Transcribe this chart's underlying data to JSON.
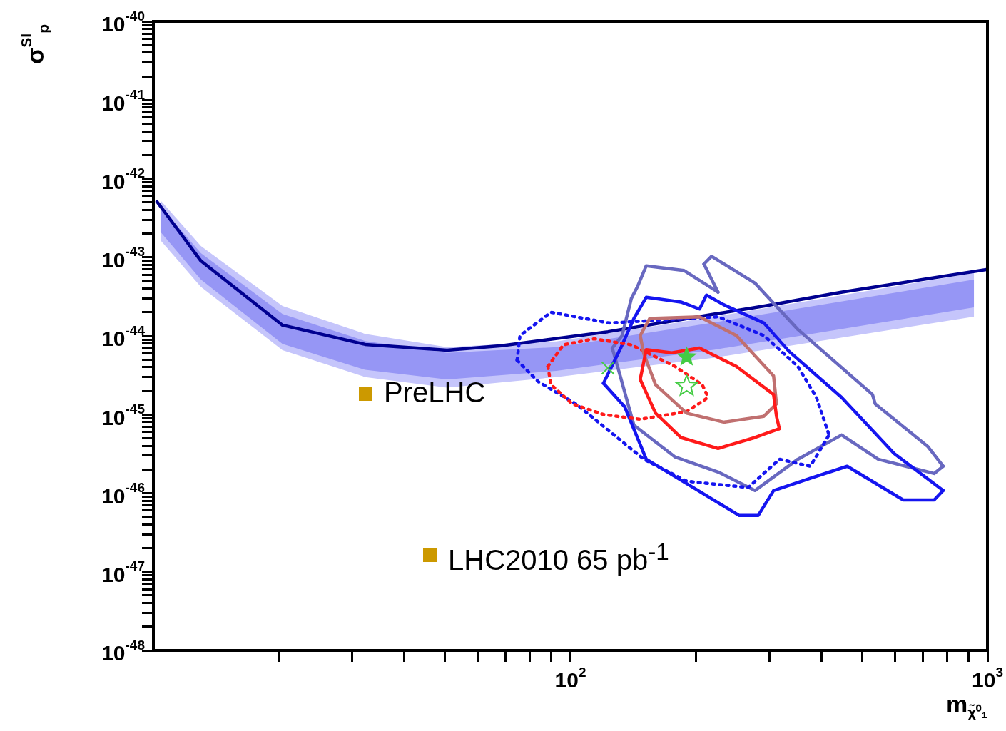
{
  "chart_data": {
    "type": "line",
    "xlabel": "m$_{χ̃⁰₁}$",
    "ylabel": "σ$^{SI}$$_{p}$",
    "log": "xy",
    "grid": false,
    "legend": false,
    "xlim": [
      10,
      1000
    ],
    "ylim": [
      1e-48,
      1e-40
    ],
    "xticks": [
      {
        "value": 20,
        "label": null
      },
      {
        "value": 30,
        "label": null
      },
      {
        "value": 40,
        "label": null
      },
      {
        "value": 50,
        "label": null
      },
      {
        "value": 60,
        "label": null
      },
      {
        "value": 70,
        "label": null
      },
      {
        "value": 80,
        "label": null
      },
      {
        "value": 90,
        "label": null
      },
      {
        "value": 100,
        "label": "10$^{2}$"
      },
      {
        "value": 200,
        "label": null
      },
      {
        "value": 300,
        "label": null
      },
      {
        "value": 400,
        "label": null
      },
      {
        "value": 500,
        "label": null
      },
      {
        "value": 600,
        "label": null
      },
      {
        "value": 700,
        "label": null
      },
      {
        "value": 800,
        "label": null
      },
      {
        "value": 900,
        "label": null
      },
      {
        "value": 1000,
        "label": "10$^{3}$"
      }
    ],
    "yticks": [
      {
        "value": 1e-48,
        "label": "10$^{-48}$"
      },
      {
        "value": 2e-48,
        "label": null
      },
      {
        "value": 3e-48,
        "label": null
      },
      {
        "value": 4e-48,
        "label": null
      },
      {
        "value": 5e-48,
        "label": null
      },
      {
        "value": 6e-48,
        "label": null
      },
      {
        "value": 7e-48,
        "label": null
      },
      {
        "value": 8e-48,
        "label": null
      },
      {
        "value": 9e-48,
        "label": null
      },
      {
        "value": 1e-47,
        "label": "10$^{-47}$"
      },
      {
        "value": 2e-47,
        "label": null
      },
      {
        "value": 3e-47,
        "label": null
      },
      {
        "value": 4e-47,
        "label": null
      },
      {
        "value": 5e-47,
        "label": null
      },
      {
        "value": 6e-47,
        "label": null
      },
      {
        "value": 7e-47,
        "label": null
      },
      {
        "value": 8e-47,
        "label": null
      },
      {
        "value": 9e-47,
        "label": null
      },
      {
        "value": 1e-46,
        "label": "10$^{-46}$"
      },
      {
        "value": 2e-46,
        "label": null
      },
      {
        "value": 3e-46,
        "label": null
      },
      {
        "value": 4e-46,
        "label": null
      },
      {
        "value": 5e-46,
        "label": null
      },
      {
        "value": 6e-46,
        "label": null
      },
      {
        "value": 7e-46,
        "label": null
      },
      {
        "value": 8e-46,
        "label": null
      },
      {
        "value": 9e-46,
        "label": null
      },
      {
        "value": 1e-45,
        "label": "10$^{-45}$"
      },
      {
        "value": 2e-45,
        "label": null
      },
      {
        "value": 3e-45,
        "label": null
      },
      {
        "value": 4e-45,
        "label": null
      },
      {
        "value": 5e-45,
        "label": null
      },
      {
        "value": 6e-45,
        "label": null
      },
      {
        "value": 7e-45,
        "label": null
      },
      {
        "value": 8e-45,
        "label": null
      },
      {
        "value": 9e-45,
        "label": null
      },
      {
        "value": 1e-44,
        "label": "10$^{-44}$"
      },
      {
        "value": 2e-44,
        "label": null
      },
      {
        "value": 3e-44,
        "label": null
      },
      {
        "value": 4e-44,
        "label": null
      },
      {
        "value": 5e-44,
        "label": null
      },
      {
        "value": 6e-44,
        "label": null
      },
      {
        "value": 7e-44,
        "label": null
      },
      {
        "value": 8e-44,
        "label": null
      },
      {
        "value": 9e-44,
        "label": null
      },
      {
        "value": 1e-43,
        "label": "10$^{-43}$"
      },
      {
        "value": 2e-43,
        "label": null
      },
      {
        "value": 3e-43,
        "label": null
      },
      {
        "value": 4e-43,
        "label": null
      },
      {
        "value": 5e-43,
        "label": null
      },
      {
        "value": 6e-43,
        "label": null
      },
      {
        "value": 7e-43,
        "label": null
      },
      {
        "value": 8e-43,
        "label": null
      },
      {
        "value": 9e-43,
        "label": null
      },
      {
        "value": 1e-42,
        "label": "10$^{-42}$"
      },
      {
        "value": 2e-42,
        "label": null
      },
      {
        "value": 3e-42,
        "label": null
      },
      {
        "value": 4e-42,
        "label": null
      },
      {
        "value": 5e-42,
        "label": null
      },
      {
        "value": 6e-42,
        "label": null
      },
      {
        "value": 7e-42,
        "label": null
      },
      {
        "value": 8e-42,
        "label": null
      },
      {
        "value": 9e-42,
        "label": null
      },
      {
        "value": 1e-41,
        "label": "10$^{-41}$"
      },
      {
        "value": 2e-41,
        "label": null
      },
      {
        "value": 3e-41,
        "label": null
      },
      {
        "value": 4e-41,
        "label": null
      },
      {
        "value": 5e-41,
        "label": null
      },
      {
        "value": 6e-41,
        "label": null
      },
      {
        "value": 7e-41,
        "label": null
      },
      {
        "value": 8e-41,
        "label": null
      },
      {
        "value": 9e-41,
        "label": null
      },
      {
        "value": 1e-40,
        "label": "10$^{-40}$"
      }
    ],
    "series": [
      {
        "type": "line",
        "color": "#c5c5fb",
        "x": [
          10.4,
          13.0,
          20.4,
          32.2,
          50.6,
          92.5,
          222,
          928
        ],
        "values": [
          null,
          null,
          null,
          null,
          null,
          null,
          null,
          null
        ],
        "upper": [
          5.3e-43,
          1.39e-43,
          2.4e-44,
          1.06e-44,
          7.2e-45,
          8.5e-45,
          1.76e-44,
          6.3e-44
        ],
        "lower": [
          1.64e-43,
          4.2e-44,
          6.6e-45,
          3e-45,
          2.2e-45,
          3e-45,
          5.3e-45,
          1.76e-44
        ]
      },
      {
        "type": "line",
        "color": "#9696f5",
        "x": [
          10.4,
          13.0,
          20.4,
          32.2,
          50.6,
          92.5,
          222,
          928
        ],
        "values": [
          null,
          null,
          null,
          null,
          null,
          null,
          null,
          null
        ],
        "upper": [
          4.4e-43,
          1.13e-43,
          1.9e-44,
          8.6e-45,
          6.1e-45,
          7.2e-45,
          1.49e-44,
          5.2e-44
        ],
        "lower": [
          2.1e-43,
          5.2e-44,
          7.9e-45,
          3.7e-45,
          2.8e-45,
          3.6e-45,
          6.7e-45,
          2.3e-44
        ]
      },
      {
        "type": "line",
        "color": "#000090",
        "x": [
          10.2,
          13.0,
          20.4,
          32.2,
          50.6,
          68.4,
          123,
          222,
          292,
          446,
          1000
        ],
        "values": [
          5.1e-43,
          9e-44,
          1.37e-44,
          7.8e-45,
          6.6e-45,
          7.5e-45,
          1.13e-44,
          1.9e-44,
          2.4e-44,
          3.6e-44,
          7e-44
        ]
      },
      {
        "type": "line",
        "color": "#6868c0",
        "x": [
          126,
          133,
          140,
          145,
          152,
          187,
          226
        ],
        "values": [
          7e-45,
          1.01e-44,
          3e-44,
          4.3e-44,
          7.8e-44,
          6.8e-44,
          3.6e-44
        ]
      },
      {
        "type": "line",
        "color": "#6868c0",
        "x": [
          209,
          226
        ],
        "values": [
          8.2e-44,
          3.6e-44
        ]
      },
      {
        "type": "line",
        "color": "#6868c0",
        "x": [
          209,
          218,
          277,
          351,
          530,
          538,
          720,
          783
        ],
        "values": [
          8.2e-44,
          1.03e-43,
          4.7e-44,
          1.21e-44,
          1.8e-45,
          1.37e-45,
          3.9e-46,
          2.2e-46
        ]
      },
      {
        "type": "line",
        "color": "#6868c0",
        "x": [
          126,
          131,
          142,
          178,
          226,
          277,
          351,
          447,
          547,
          745,
          783
        ],
        "values": [
          7e-45,
          3.4e-45,
          7.3e-46,
          2.9e-46,
          1.86e-46,
          1.08e-46,
          2.7e-46,
          5.5e-46,
          2.7e-46,
          1.78e-46,
          2.2e-46
        ]
      },
      {
        "type": "line",
        "color": "#1515f0",
        "x": [
          120,
          132,
          142,
          152,
          184,
          204,
          212,
          233,
          291,
          334,
          447,
          597,
          783
        ],
        "values": [
          2.5e-45,
          7e-45,
          1.67e-44,
          3.1e-44,
          2.7e-44,
          2.2e-44,
          3.3e-44,
          2.5e-44,
          1.46e-44,
          6.4e-45,
          1.65e-45,
          3.2e-46,
          1.08e-46
        ]
      },
      {
        "type": "line",
        "color": "#1515f0",
        "x": [
          120,
          135,
          152,
          197,
          254,
          282,
          307,
          376,
          461,
          628,
          745,
          783
        ],
        "values": [
          2.5e-45,
          1.25e-45,
          2.7e-46,
          1.18e-46,
          5.2e-47,
          5.2e-47,
          1.08e-46,
          1.55e-46,
          2.2e-46,
          8.2e-47,
          8.2e-47,
          1.08e-46
        ]
      },
      {
        "type": "line",
        "color": "#1515f0",
        "line_style": "dotted",
        "x": [
          74.5,
          75.7,
          89.8,
          124,
          226,
          291,
          351,
          389,
          417
        ],
        "values": [
          4.9e-45,
          1.01e-44,
          2e-44,
          1.46e-44,
          1.75e-44,
          1.01e-44,
          4.1e-45,
          1.65e-45,
          5.5e-46
        ]
      },
      {
        "type": "line",
        "color": "#1515f0",
        "line_style": "dotted",
        "x": [
          74.5,
          83.9,
          103,
          150,
          190,
          267,
          317,
          376,
          417
        ],
        "values": [
          4.9e-45,
          2.6e-45,
          1.37e-45,
          2.7e-46,
          1.42e-46,
          1.18e-46,
          2.7e-46,
          2.2e-46,
          5.5e-46
        ]
      },
      {
        "type": "line",
        "color": "#ff1a1a",
        "line_style": "dotted",
        "x": [
          88.3,
          96.2,
          114,
          140,
          178,
          207,
          214
        ],
        "values": [
          4.1e-45,
          7.7e-45,
          9.2e-45,
          7.7e-45,
          4.1e-45,
          2.4e-45,
          1.65e-45
        ]
      },
      {
        "type": "line",
        "color": "#ff1a1a",
        "line_style": "dotted",
        "x": [
          88.3,
          89.8,
          101,
          120,
          147,
          190,
          214
        ],
        "values": [
          4.1e-45,
          2.4e-45,
          1.37e-45,
          1e-45,
          8.7e-46,
          1.09e-45,
          1.65e-45
        ]
      },
      {
        "type": "line",
        "color": "#c07070",
        "x": [
          147,
          155,
          204,
          250,
          307,
          312
        ],
        "values": [
          1.01e-44,
          1.67e-44,
          1.75e-44,
          1.01e-44,
          3.1e-45,
          1.37e-45
        ]
      },
      {
        "type": "line",
        "color": "#c07070",
        "x": [
          147,
          150,
          160,
          190,
          233,
          291,
          312
        ],
        "values": [
          1.01e-44,
          5.9e-45,
          2.4e-45,
          1.04e-45,
          8e-46,
          9.5e-46,
          1.37e-45
        ]
      },
      {
        "type": "line",
        "color": "#ff1a1a",
        "x": [
          147,
          152,
          175,
          204,
          250,
          307,
          312,
          317
        ],
        "values": [
          2.8e-45,
          6.7e-45,
          6.1e-45,
          7e-45,
          4.1e-45,
          1.8e-45,
          9.5e-46,
          6.6e-46
        ]
      },
      {
        "type": "line",
        "color": "#ff1a1a",
        "x": [
          147,
          160,
          184,
          226,
          277,
          317
        ],
        "values": [
          2.8e-45,
          1.04e-45,
          5.1e-46,
          3.7e-46,
          5.1e-46,
          6.6e-46
        ]
      },
      {
        "type": "scatter",
        "color": "#44cc44",
        "marker": "star",
        "x": [
          190,
          190
        ],
        "values": [
          5.4e-45,
          2.3e-45
        ]
      },
      {
        "type": "scatter",
        "color": "#44cc44",
        "marker": "cross",
        "x": [
          123
        ],
        "values": [
          3.9e-45
        ]
      }
    ],
    "annotations": [
      "PreLHC",
      "LHC2010 65 pb$^{-1}$"
    ]
  }
}
